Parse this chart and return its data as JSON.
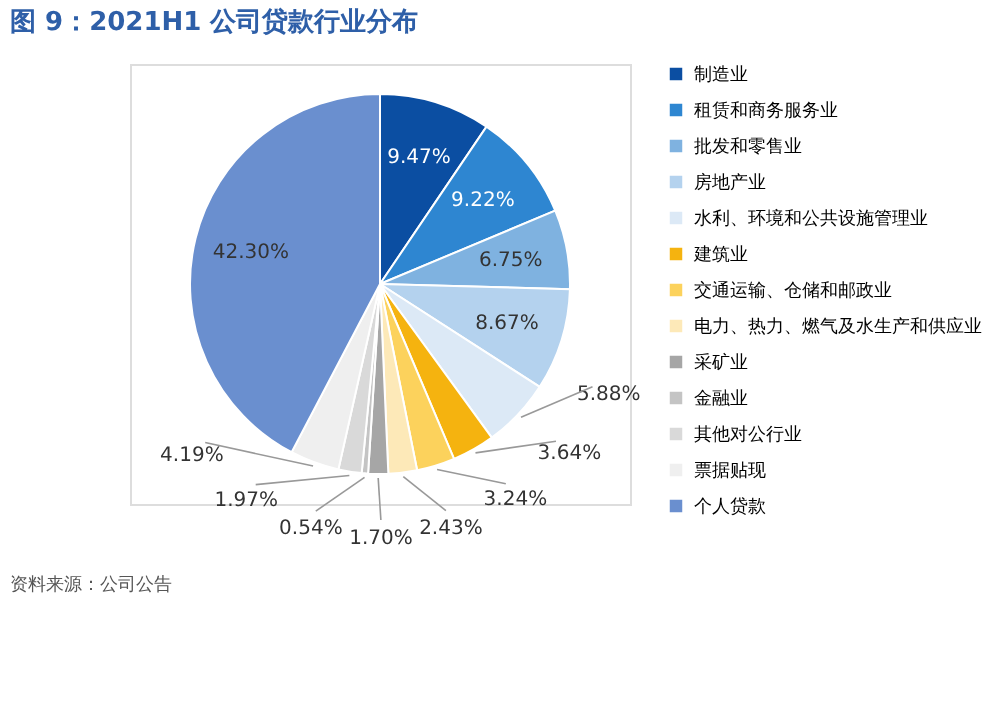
{
  "chart_data": {
    "type": "pie",
    "title": "图 9：2021H1 公司贷款行业分布",
    "categories": [
      "制造业",
      "租赁和商务服务业",
      "批发和零售业",
      "房地产业",
      "水利、环境和公共设施管理业",
      "建筑业",
      "交通运输、仓储和邮政业",
      "电力、热力、燃气及水生产和供应业",
      "采矿业",
      "金融业",
      "其他对公行业",
      "票据贴现",
      "个人贷款"
    ],
    "values": [
      9.47,
      9.22,
      6.75,
      8.67,
      5.88,
      3.64,
      3.24,
      2.43,
      1.7,
      0.54,
      1.97,
      4.19,
      42.3
    ],
    "colors": [
      "#0b4ea2",
      "#2e86d1",
      "#7fb2e0",
      "#b4d2ee",
      "#dce9f6",
      "#f5b30f",
      "#fcd25c",
      "#fde9b8",
      "#a6a6a6",
      "#c4c4c4",
      "#d9d9d9",
      "#efefef",
      "#6a8fcf"
    ],
    "value_labels": [
      "9.47%",
      "9.22%",
      "6.75%",
      "8.67%",
      "5.88%",
      "3.64%",
      "3.24%",
      "2.43%",
      "1.70%",
      "0.54%",
      "1.97%",
      "4.19%",
      "42.30%"
    ],
    "legend": "right",
    "annotations": [
      "资料来源：公司公告"
    ]
  }
}
